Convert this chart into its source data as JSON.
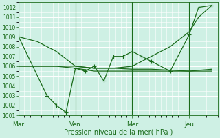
{
  "xlabel": "Pression niveau de la mer( hPa )",
  "bg_color": "#cef0e4",
  "grid_color": "#ffffff",
  "line_color": "#1a6b1a",
  "ylim": [
    1001,
    1012.5
  ],
  "yticks": [
    1001,
    1002,
    1003,
    1004,
    1005,
    1006,
    1007,
    1008,
    1009,
    1010,
    1011,
    1012
  ],
  "xtick_labels": [
    "Mar",
    "Ven",
    "Mer",
    "Jeu"
  ],
  "xtick_positions": [
    0,
    3,
    6,
    9
  ],
  "xlim": [
    0,
    10.5
  ],
  "vline_positions": [
    0,
    3,
    6,
    9
  ],
  "smooth_x": [
    0,
    1,
    2,
    3,
    4,
    5,
    6,
    7,
    8,
    9,
    9.5,
    10.2
  ],
  "smooth_y": [
    1009,
    1008.5,
    1007.5,
    1006,
    1005.8,
    1005.8,
    1006,
    1007,
    1008,
    1009.5,
    1011,
    1012.2
  ],
  "flat1_x": [
    0,
    1,
    2,
    3,
    4,
    5,
    6,
    7,
    8,
    9,
    10.2
  ],
  "flat1_y": [
    1006,
    1006,
    1006,
    1006,
    1005.8,
    1005.8,
    1005.7,
    1005.7,
    1005.6,
    1005.5,
    1005.5
  ],
  "flat2_x": [
    0,
    1,
    2,
    3,
    4,
    5,
    6,
    7,
    8,
    9,
    10.2
  ],
  "flat2_y": [
    1006,
    1006,
    1006,
    1005.8,
    1005.5,
    1005.5,
    1005.5,
    1005.5,
    1005.5,
    1005.5,
    1005.7
  ],
  "jagged_x": [
    0,
    1.5,
    2.0,
    2.5,
    3.0,
    3.5,
    4.0,
    4.5,
    5.0,
    5.5,
    6.0,
    6.5,
    7.0,
    8.0,
    9.0,
    9.5,
    10.2
  ],
  "jagged_y": [
    1009,
    1003,
    1002,
    1001.3,
    1005.8,
    1005.5,
    1006,
    1004.5,
    1007,
    1007,
    1007.5,
    1007,
    1006.5,
    1005.5,
    1009.2,
    1012.0,
    1012.2
  ],
  "marker": "+",
  "markersize": 4
}
